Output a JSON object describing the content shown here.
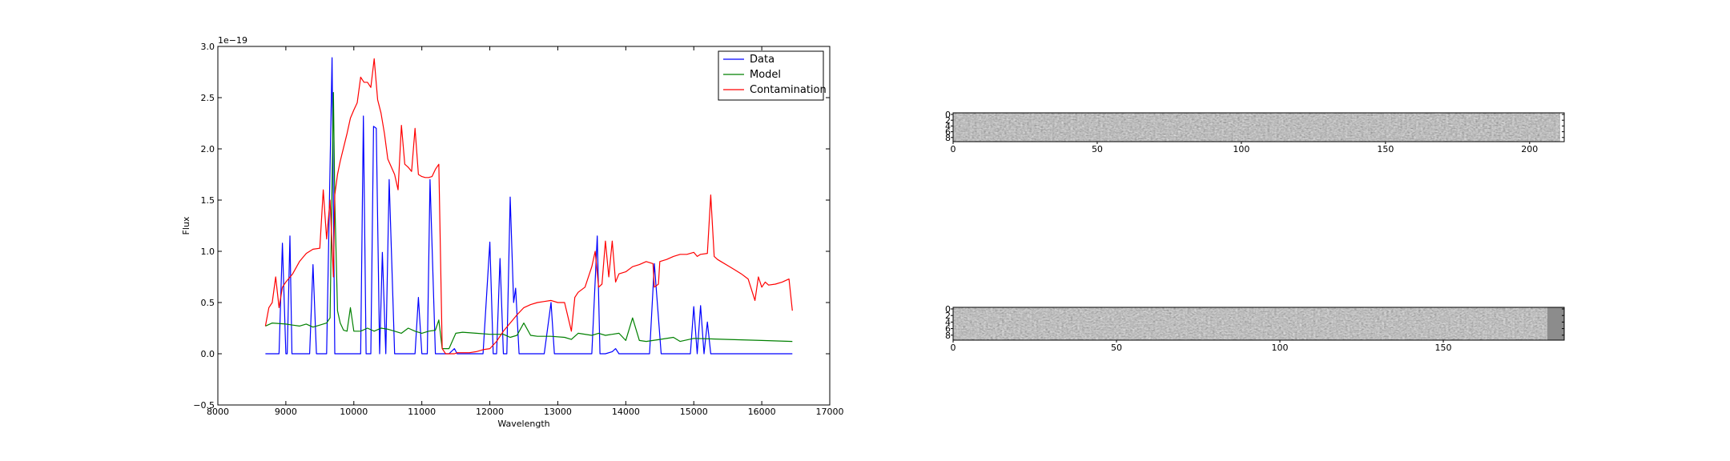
{
  "chart_data": [
    {
      "type": "line",
      "xlabel": "Wavelength",
      "ylabel": "Flux",
      "offset_label": "1e−19",
      "xlim": [
        8000,
        17000
      ],
      "ylim": [
        -0.5,
        3.0
      ],
      "xticks": [
        8000,
        9000,
        10000,
        11000,
        12000,
        13000,
        14000,
        15000,
        16000,
        17000
      ],
      "yticks": [
        -0.5,
        0.0,
        0.5,
        1.0,
        1.5,
        2.0,
        2.5,
        3.0
      ],
      "xtick_labels": [
        "8000",
        "9000",
        "10000",
        "11000",
        "12000",
        "13000",
        "14000",
        "15000",
        "16000",
        "17000"
      ],
      "ytick_labels": [
        "−0.5",
        "0.0",
        "0.5",
        "1.0",
        "1.5",
        "2.0",
        "2.5",
        "3.0"
      ],
      "legend_position": "top-right",
      "grid": false,
      "series": [
        {
          "name": "Data",
          "color": "#0000ff",
          "x": [
            8700,
            8900,
            8950,
            9000,
            9020,
            9060,
            9090,
            9150,
            9350,
            9400,
            9450,
            9600,
            9680,
            9720,
            9760,
            10100,
            10140,
            10180,
            10250,
            10290,
            10330,
            10380,
            10420,
            10470,
            10520,
            10600,
            10900,
            10950,
            11000,
            11080,
            11120,
            11200,
            11250,
            11350,
            11400,
            11480,
            11520,
            11900,
            12000,
            12050,
            12100,
            12150,
            12200,
            12250,
            12300,
            12350,
            12380,
            12430,
            12800,
            12900,
            12950,
            13500,
            13580,
            13620,
            13700,
            13800,
            13850,
            13900,
            14350,
            14420,
            14520,
            14900,
            14950,
            15000,
            15050,
            15100,
            15150,
            15200,
            15250,
            16450
          ],
          "y": [
            0.0,
            0.0,
            1.08,
            0.0,
            0.0,
            1.15,
            0.0,
            0.0,
            0.0,
            0.87,
            0.0,
            0.0,
            2.89,
            0.0,
            0.0,
            0.0,
            2.32,
            0.0,
            0.0,
            2.22,
            2.2,
            0.0,
            0.99,
            0.0,
            1.7,
            0.0,
            0.0,
            0.55,
            0.0,
            0.0,
            1.7,
            0.0,
            0.0,
            0.0,
            0.0,
            0.05,
            0.0,
            0.0,
            1.09,
            0.0,
            0.0,
            0.93,
            0.0,
            0.0,
            1.53,
            0.5,
            0.64,
            0.0,
            0.0,
            0.5,
            0.0,
            0.0,
            1.15,
            0.0,
            0.0,
            0.02,
            0.05,
            0.0,
            0.0,
            0.88,
            0.0,
            0.0,
            0.0,
            0.46,
            0.0,
            0.47,
            0.0,
            0.31,
            0.0,
            0.0
          ]
        },
        {
          "name": "Model",
          "color": "#008000",
          "x": [
            8700,
            8800,
            9000,
            9100,
            9200,
            9300,
            9400,
            9500,
            9600,
            9650,
            9700,
            9720,
            9760,
            9800,
            9850,
            9900,
            9950,
            10000,
            10100,
            10200,
            10300,
            10400,
            10500,
            10600,
            10700,
            10800,
            10900,
            11000,
            11100,
            11200,
            11250,
            11300,
            11400,
            11500,
            11600,
            11800,
            12000,
            12200,
            12300,
            12400,
            12500,
            12600,
            12700,
            12900,
            13100,
            13200,
            13300,
            13500,
            13600,
            13700,
            13900,
            14000,
            14100,
            14200,
            14300,
            14500,
            14700,
            14800,
            15000,
            15500,
            16000,
            16450
          ],
          "y": [
            0.27,
            0.3,
            0.29,
            0.28,
            0.27,
            0.29,
            0.26,
            0.28,
            0.3,
            0.35,
            2.55,
            1.5,
            0.42,
            0.3,
            0.23,
            0.22,
            0.45,
            0.22,
            0.22,
            0.25,
            0.22,
            0.25,
            0.24,
            0.22,
            0.2,
            0.25,
            0.22,
            0.2,
            0.22,
            0.23,
            0.33,
            0.05,
            0.05,
            0.2,
            0.21,
            0.2,
            0.19,
            0.19,
            0.16,
            0.18,
            0.3,
            0.18,
            0.17,
            0.17,
            0.16,
            0.14,
            0.2,
            0.18,
            0.2,
            0.18,
            0.2,
            0.13,
            0.35,
            0.13,
            0.12,
            0.14,
            0.16,
            0.12,
            0.15,
            0.14,
            0.13,
            0.12
          ]
        },
        {
          "name": "Contamination",
          "color": "#ff0000",
          "x": [
            8700,
            8750,
            8800,
            8850,
            8900,
            8950,
            9000,
            9100,
            9200,
            9300,
            9400,
            9500,
            9550,
            9600,
            9650,
            9700,
            9720,
            9760,
            9800,
            9900,
            9950,
            10000,
            10050,
            10100,
            10150,
            10200,
            10250,
            10300,
            10350,
            10400,
            10450,
            10500,
            10600,
            10650,
            10700,
            10750,
            10800,
            10850,
            10900,
            10950,
            11000,
            11050,
            11100,
            11150,
            11200,
            11250,
            11300,
            11350,
            11400,
            11450,
            11480,
            11520,
            11600,
            11700,
            11800,
            11900,
            12000,
            12100,
            12200,
            12300,
            12400,
            12500,
            12600,
            12700,
            12800,
            12900,
            13000,
            13100,
            13200,
            13250,
            13300,
            13400,
            13500,
            13550,
            13600,
            13650,
            13700,
            13750,
            13800,
            13850,
            13900,
            14000,
            14100,
            14200,
            14300,
            14400,
            14420,
            14480,
            14500,
            14600,
            14700,
            14800,
            14900,
            15000,
            15050,
            15100,
            15200,
            15250,
            15300,
            15350,
            15400,
            15500,
            15600,
            15700,
            15800,
            15900,
            15950,
            16000,
            16050,
            16100,
            16200,
            16300,
            16400,
            16450
          ],
          "y": [
            0.27,
            0.45,
            0.5,
            0.75,
            0.45,
            0.65,
            0.7,
            0.78,
            0.9,
            0.98,
            1.02,
            1.03,
            1.6,
            1.12,
            1.5,
            0.75,
            1.55,
            1.75,
            1.88,
            2.15,
            2.3,
            2.38,
            2.45,
            2.7,
            2.65,
            2.65,
            2.6,
            2.88,
            2.48,
            2.35,
            2.15,
            1.9,
            1.75,
            1.6,
            2.23,
            1.85,
            1.82,
            1.78,
            2.2,
            1.75,
            1.73,
            1.72,
            1.72,
            1.73,
            1.8,
            1.85,
            0.05,
            0.0,
            0.0,
            0.0,
            0.0,
            0.01,
            0.01,
            0.01,
            0.02,
            0.04,
            0.05,
            0.12,
            0.22,
            0.3,
            0.38,
            0.45,
            0.48,
            0.5,
            0.51,
            0.52,
            0.5,
            0.5,
            0.22,
            0.55,
            0.6,
            0.65,
            0.85,
            1.0,
            0.65,
            0.68,
            1.1,
            0.75,
            1.1,
            0.7,
            0.78,
            0.8,
            0.85,
            0.87,
            0.9,
            0.88,
            0.65,
            0.68,
            0.9,
            0.92,
            0.95,
            0.97,
            0.97,
            0.99,
            0.95,
            0.97,
            0.98,
            1.55,
            0.95,
            0.92,
            0.9,
            0.86,
            0.82,
            0.78,
            0.73,
            0.52,
            0.75,
            0.65,
            0.7,
            0.67,
            0.68,
            0.7,
            0.73,
            0.42
          ]
        }
      ]
    },
    {
      "type": "heatmap",
      "title": "",
      "colormap": "gray",
      "xlim": [
        0,
        212
      ],
      "ylim": [
        0,
        10
      ],
      "xticks": [
        0,
        50,
        100,
        150,
        200
      ],
      "xtick_labels": [
        "0",
        "50",
        "100",
        "150",
        "200"
      ],
      "yticks": [
        0,
        2,
        4,
        6,
        8
      ],
      "ytick_labels": [
        "0",
        "2",
        "4",
        "6",
        "8"
      ]
    },
    {
      "type": "heatmap",
      "title": "",
      "colormap": "gray",
      "xlim": [
        0,
        187
      ],
      "ylim": [
        0,
        10
      ],
      "xticks": [
        0,
        50,
        100,
        150
      ],
      "xtick_labels": [
        "0",
        "50",
        "100",
        "150"
      ],
      "yticks": [
        0,
        2,
        4,
        6,
        8
      ],
      "ytick_labels": [
        "0",
        "2",
        "4",
        "6",
        "8"
      ]
    }
  ]
}
